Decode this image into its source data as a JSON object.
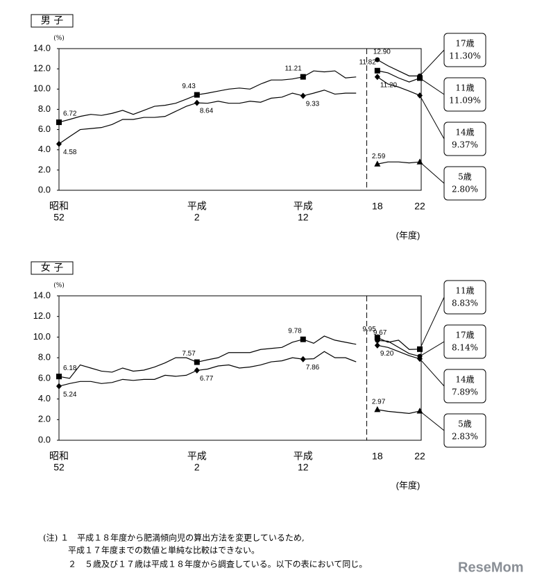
{
  "chart_data": [
    {
      "type": "line",
      "title": "男 子",
      "y_unit": "(%)",
      "x_unit": "(年度)",
      "ylim": [
        0,
        14
      ],
      "yticks": [
        {
          "value": 0,
          "label": "0.0"
        },
        {
          "value": 2,
          "label": "2.0"
        },
        {
          "value": 4,
          "label": "4.0"
        },
        {
          "value": 6,
          "label": "6.0"
        },
        {
          "value": 8,
          "label": "8.0"
        },
        {
          "value": 10,
          "label": "10.0"
        },
        {
          "value": 12,
          "label": "12.0"
        },
        {
          "value": 14,
          "label": "14.0"
        }
      ],
      "categories": [
        [
          "昭和",
          "52"
        ],
        null,
        null,
        null,
        null,
        null,
        null,
        null,
        null,
        null,
        null,
        null,
        null,
        [
          "平成",
          "2"
        ],
        null,
        null,
        null,
        null,
        null,
        null,
        null,
        null,
        null,
        [
          "平成",
          "12"
        ],
        null,
        null,
        null,
        null,
        null,
        null,
        [
          "18"
        ],
        null,
        null,
        null,
        [
          "22"
        ]
      ],
      "series": [
        {
          "name": "17歳",
          "marker": "circle",
          "color": "#000000",
          "values": [
            null,
            null,
            null,
            null,
            null,
            null,
            null,
            null,
            null,
            null,
            null,
            null,
            null,
            null,
            null,
            null,
            null,
            null,
            null,
            null,
            null,
            null,
            null,
            null,
            null,
            null,
            null,
            null,
            null,
            null,
            12.9,
            12.3,
            11.8,
            11.3,
            11.3
          ],
          "value_labels": [
            null,
            null,
            null,
            null,
            null,
            null,
            null,
            null,
            null,
            null,
            null,
            null,
            null,
            null,
            null,
            null,
            null,
            null,
            null,
            null,
            null,
            null,
            null,
            null,
            null,
            null,
            null,
            null,
            null,
            null,
            "12.90",
            null,
            null,
            null,
            "11.30%"
          ]
        },
        {
          "name": "11歳",
          "marker": "square",
          "color": "#000000",
          "values": [
            6.72,
            7.0,
            7.3,
            7.5,
            7.4,
            7.6,
            7.9,
            7.5,
            7.9,
            8.3,
            8.4,
            8.6,
            9.0,
            9.43,
            9.6,
            9.8,
            10.0,
            10.1,
            10.0,
            10.5,
            10.9,
            10.9,
            11.0,
            11.21,
            11.8,
            11.7,
            11.8,
            11.1,
            11.2,
            null,
            11.82,
            11.6,
            11.1,
            10.7,
            11.09
          ],
          "value_labels": [
            "6.72",
            null,
            null,
            null,
            null,
            null,
            null,
            null,
            null,
            null,
            null,
            null,
            null,
            "9.43",
            null,
            null,
            null,
            null,
            null,
            null,
            null,
            null,
            null,
            "11.21",
            null,
            null,
            null,
            null,
            null,
            null,
            "11.82",
            null,
            null,
            null,
            "11.09%"
          ]
        },
        {
          "name": "14歳",
          "marker": "diamond",
          "color": "#000000",
          "values": [
            4.58,
            5.3,
            6.0,
            6.1,
            6.2,
            6.5,
            7.0,
            7.0,
            7.2,
            7.2,
            7.3,
            7.8,
            8.3,
            8.64,
            8.6,
            8.8,
            8.6,
            8.6,
            8.8,
            8.7,
            9.1,
            9.2,
            9.6,
            9.33,
            9.6,
            9.9,
            9.5,
            9.6,
            9.6,
            null,
            11.2,
            10.5,
            10.2,
            9.8,
            9.37
          ],
          "value_labels": [
            "4.58",
            null,
            null,
            null,
            null,
            null,
            null,
            null,
            null,
            null,
            null,
            null,
            null,
            "8.64",
            null,
            null,
            null,
            null,
            null,
            null,
            null,
            null,
            null,
            "9.33",
            null,
            null,
            null,
            null,
            null,
            null,
            "11.20",
            null,
            null,
            null,
            "9.37%"
          ]
        },
        {
          "name": "5歳",
          "marker": "triangle",
          "color": "#000000",
          "values": [
            null,
            null,
            null,
            null,
            null,
            null,
            null,
            null,
            null,
            null,
            null,
            null,
            null,
            null,
            null,
            null,
            null,
            null,
            null,
            null,
            null,
            null,
            null,
            null,
            null,
            null,
            null,
            null,
            null,
            null,
            2.59,
            2.8,
            2.8,
            2.7,
            2.8
          ],
          "value_labels": [
            null,
            null,
            null,
            null,
            null,
            null,
            null,
            null,
            null,
            null,
            null,
            null,
            null,
            null,
            null,
            null,
            null,
            null,
            null,
            null,
            null,
            null,
            null,
            null,
            null,
            null,
            null,
            null,
            null,
            null,
            "2.59",
            null,
            null,
            null,
            "2.80%"
          ]
        }
      ]
    },
    {
      "type": "line",
      "title": "女 子",
      "y_unit": "(%)",
      "x_unit": "(年度)",
      "ylim": [
        0,
        14
      ],
      "yticks": [
        {
          "value": 0,
          "label": "0.0"
        },
        {
          "value": 2,
          "label": "2.0"
        },
        {
          "value": 4,
          "label": "4.0"
        },
        {
          "value": 6,
          "label": "6.0"
        },
        {
          "value": 8,
          "label": "8.0"
        },
        {
          "value": 10,
          "label": "10.0"
        },
        {
          "value": 12,
          "label": "12.0"
        },
        {
          "value": 14,
          "label": "14.0"
        }
      ],
      "categories": [
        [
          "昭和",
          "52"
        ],
        null,
        null,
        null,
        null,
        null,
        null,
        null,
        null,
        null,
        null,
        null,
        null,
        [
          "平成",
          "2"
        ],
        null,
        null,
        null,
        null,
        null,
        null,
        null,
        null,
        null,
        [
          "平成",
          "12"
        ],
        null,
        null,
        null,
        null,
        null,
        null,
        [
          "18"
        ],
        null,
        null,
        null,
        [
          "22"
        ]
      ],
      "series": [
        {
          "name": "11歳",
          "marker": "square",
          "color": "#000000",
          "values": [
            6.18,
            6.0,
            7.3,
            7.0,
            6.7,
            6.6,
            7.0,
            6.7,
            6.8,
            7.1,
            7.5,
            8.0,
            8.0,
            7.57,
            7.8,
            8.0,
            8.5,
            8.5,
            8.5,
            8.8,
            8.9,
            9.0,
            9.5,
            9.78,
            9.4,
            10.1,
            9.7,
            9.5,
            9.3,
            null,
            9.95,
            9.5,
            9.7,
            8.8,
            8.83
          ],
          "value_labels": [
            "6.18",
            null,
            null,
            null,
            null,
            null,
            null,
            null,
            null,
            null,
            null,
            null,
            null,
            "7.57",
            null,
            null,
            null,
            null,
            null,
            null,
            null,
            null,
            null,
            "9.78",
            null,
            null,
            null,
            null,
            null,
            null,
            "9.95",
            null,
            null,
            null,
            "8.83%"
          ]
        },
        {
          "name": "17歳",
          "marker": "circle",
          "color": "#000000",
          "values": [
            null,
            null,
            null,
            null,
            null,
            null,
            null,
            null,
            null,
            null,
            null,
            null,
            null,
            null,
            null,
            null,
            null,
            null,
            null,
            null,
            null,
            null,
            null,
            null,
            null,
            null,
            null,
            null,
            null,
            null,
            9.67,
            9.6,
            9.0,
            8.4,
            8.14
          ],
          "value_labels": [
            null,
            null,
            null,
            null,
            null,
            null,
            null,
            null,
            null,
            null,
            null,
            null,
            null,
            null,
            null,
            null,
            null,
            null,
            null,
            null,
            null,
            null,
            null,
            null,
            null,
            null,
            null,
            null,
            null,
            null,
            "9.67",
            null,
            null,
            null,
            "8.14%"
          ]
        },
        {
          "name": "14歳",
          "marker": "diamond",
          "color": "#000000",
          "values": [
            5.24,
            5.5,
            5.7,
            5.7,
            5.5,
            5.6,
            5.9,
            5.8,
            5.9,
            5.9,
            6.3,
            6.2,
            6.3,
            6.77,
            6.9,
            7.2,
            7.3,
            7.0,
            7.1,
            7.3,
            7.6,
            7.7,
            8.0,
            7.86,
            7.9,
            8.6,
            8.0,
            8.0,
            7.6,
            null,
            9.2,
            9.0,
            8.6,
            8.2,
            7.89
          ],
          "value_labels": [
            "5.24",
            null,
            null,
            null,
            null,
            null,
            null,
            null,
            null,
            null,
            null,
            null,
            null,
            "6.77",
            null,
            null,
            null,
            null,
            null,
            null,
            null,
            null,
            null,
            "7.86",
            null,
            null,
            null,
            null,
            null,
            null,
            "9.20",
            null,
            null,
            null,
            "7.89%"
          ]
        },
        {
          "name": "5歳",
          "marker": "triangle",
          "color": "#000000",
          "values": [
            null,
            null,
            null,
            null,
            null,
            null,
            null,
            null,
            null,
            null,
            null,
            null,
            null,
            null,
            null,
            null,
            null,
            null,
            null,
            null,
            null,
            null,
            null,
            null,
            null,
            null,
            null,
            null,
            null,
            null,
            2.97,
            2.8,
            2.7,
            2.6,
            2.83
          ],
          "value_labels": [
            null,
            null,
            null,
            null,
            null,
            null,
            null,
            null,
            null,
            null,
            null,
            null,
            null,
            null,
            null,
            null,
            null,
            null,
            null,
            null,
            null,
            null,
            null,
            null,
            null,
            null,
            null,
            null,
            null,
            null,
            "2.97",
            null,
            null,
            null,
            "2.83%"
          ]
        }
      ]
    }
  ],
  "notes": [
    "(注) １　平成１８年度から肥満傾向児の算出方法を変更しているため,",
    "平成１７年度までの数値と単純な比較はできない。",
    "２　５歳及び１７歳は平成１８年度から調査している。以下の表において同じ。"
  ],
  "watermark": "ReseMom"
}
